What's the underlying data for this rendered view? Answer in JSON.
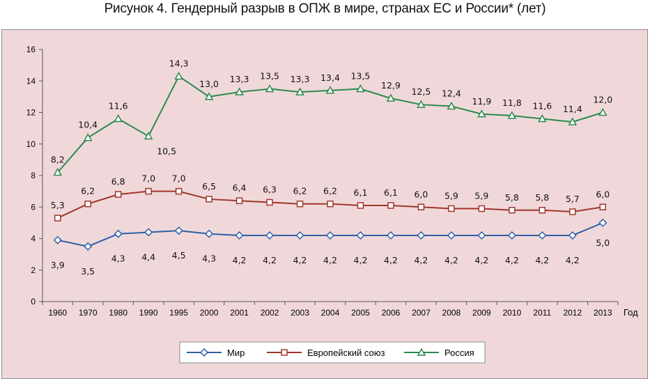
{
  "figure_title": "Рисунок 4. Гендерный разрыв в ОПЖ в мире, странах ЕС и России* (лет)",
  "chart_data": {
    "type": "line",
    "title": "Рисунок 4. Гендерный разрыв в ОПЖ в мире, странах ЕС и России* (лет)",
    "xlabel": "Год",
    "ylabel": "",
    "categories": [
      "1960",
      "1970",
      "1980",
      "1990",
      "1995",
      "2000",
      "2001",
      "2002",
      "2003",
      "2004",
      "2005",
      "2006",
      "2007",
      "2008",
      "2009",
      "2010",
      "2011",
      "2012",
      "2013"
    ],
    "ylim": [
      0,
      16
    ],
    "yticks": [
      "0",
      "2",
      "4",
      "6",
      "8",
      "10",
      "12",
      "14",
      "16"
    ],
    "grid": false,
    "legend_position": "bottom",
    "series": [
      {
        "name": "Мир",
        "color": "#2e5fa8",
        "marker": "diamond",
        "values": [
          3.9,
          3.5,
          4.3,
          4.4,
          4.5,
          4.3,
          4.2,
          4.2,
          4.2,
          4.2,
          4.2,
          4.2,
          4.2,
          4.2,
          4.2,
          4.2,
          4.2,
          4.2,
          5.0
        ],
        "labels": [
          "3,9",
          "3,5",
          "4,3",
          "4,4",
          "4,5",
          "4,3",
          "4,2",
          "4,2",
          "4,2",
          "4,2",
          "4,2",
          "4,2",
          "4,2",
          "4,2",
          "4,2",
          "4,2",
          "4,2",
          "4,2",
          "5,0"
        ]
      },
      {
        "name": "Европейский союз",
        "color": "#a0352a",
        "marker": "square",
        "values": [
          5.3,
          6.2,
          6.8,
          7.0,
          7.0,
          6.5,
          6.4,
          6.3,
          6.2,
          6.2,
          6.1,
          6.1,
          6.0,
          5.9,
          5.9,
          5.8,
          5.8,
          5.7,
          6.0
        ],
        "labels": [
          "5,3",
          "6,2",
          "6,8",
          "7,0",
          "7,0",
          "6,5",
          "6,4",
          "6,3",
          "6,2",
          "6,2",
          "6,1",
          "6,1",
          "6,0",
          "5,9",
          "5,9",
          "5,8",
          "5,8",
          "5,7",
          "6,0"
        ]
      },
      {
        "name": "Россия",
        "color": "#2a8a4a",
        "marker": "triangle",
        "values": [
          8.2,
          10.4,
          11.6,
          10.5,
          14.3,
          13.0,
          13.3,
          13.5,
          13.3,
          13.4,
          13.5,
          12.9,
          12.5,
          12.4,
          11.9,
          11.8,
          11.6,
          11.4,
          12.0
        ],
        "labels": [
          "8,2",
          "10,4",
          "11,6",
          "10,5",
          "14,3",
          "13,0",
          "13,3",
          "13,5",
          "13,3",
          "13,4",
          "13,5",
          "12,9",
          "12,5",
          "12,4",
          "11,9",
          "11,8",
          "11,6",
          "11,4",
          "12,0"
        ]
      }
    ]
  }
}
